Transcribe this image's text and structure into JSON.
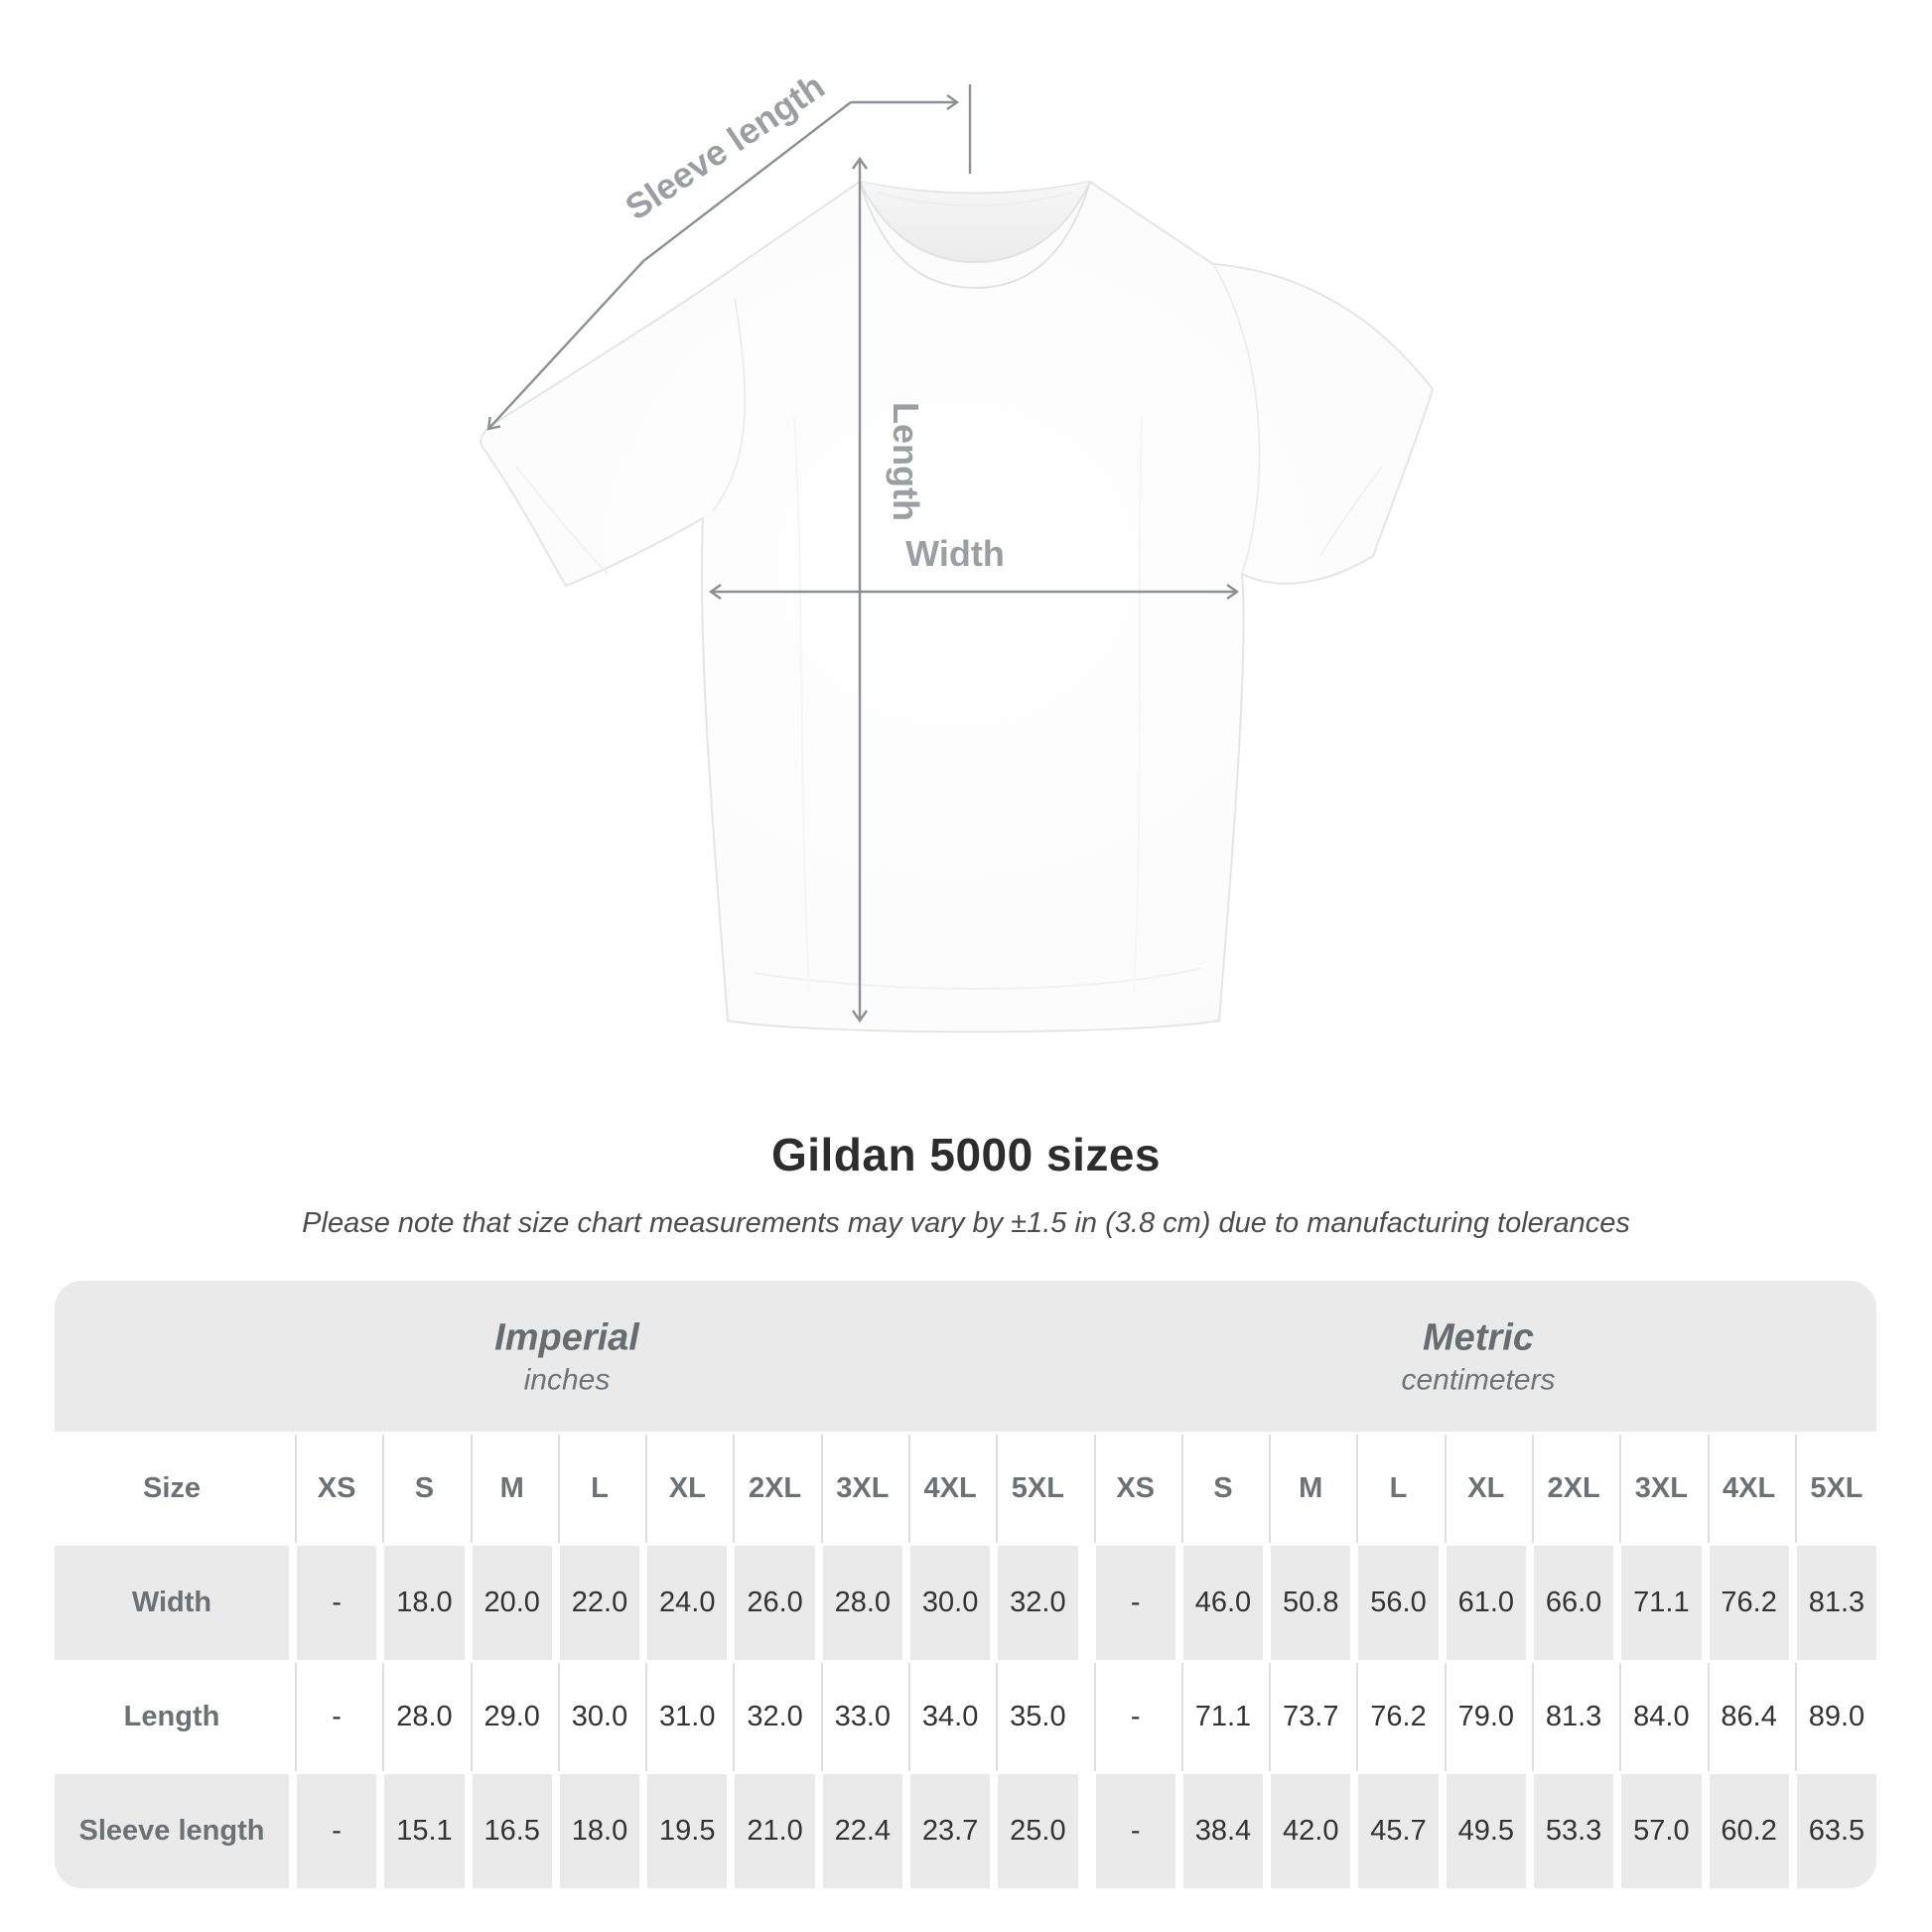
{
  "diagram": {
    "sleeve_length_label": "Sleeve length",
    "length_label": "Length",
    "width_label": "Width",
    "line_color": "#8b9094",
    "label_color": "#9b9fa3"
  },
  "title": "Gildan 5000 sizes",
  "subtitle": "Please note that size chart measurements may vary by ±1.5 in (3.8 cm) due to manufacturing tolerances",
  "table": {
    "size_header": "Size",
    "groups": [
      {
        "label": "Imperial",
        "sublabel": "inches"
      },
      {
        "label": "Metric",
        "sublabel": "centimeters"
      }
    ],
    "colors": {
      "band_bg": "#eaeaea",
      "stripe_bg": "#eaeaea",
      "header_text": "#6b7175",
      "value_text": "#333333"
    }
  },
  "chart_data": {
    "type": "table",
    "title": "Gildan 5000 sizes",
    "unit_groups": [
      {
        "name": "Imperial",
        "unit": "inches"
      },
      {
        "name": "Metric",
        "unit": "centimeters"
      }
    ],
    "sizes": [
      "XS",
      "S",
      "M",
      "L",
      "XL",
      "2XL",
      "3XL",
      "4XL",
      "5XL"
    ],
    "rows": [
      {
        "measurement": "Width",
        "imperial": [
          "-",
          "18.0",
          "20.0",
          "22.0",
          "24.0",
          "26.0",
          "28.0",
          "30.0",
          "32.0"
        ],
        "metric": [
          "-",
          "46.0",
          "50.8",
          "56.0",
          "61.0",
          "66.0",
          "71.1",
          "76.2",
          "81.3"
        ]
      },
      {
        "measurement": "Length",
        "imperial": [
          "-",
          "28.0",
          "29.0",
          "30.0",
          "31.0",
          "32.0",
          "33.0",
          "34.0",
          "35.0"
        ],
        "metric": [
          "-",
          "71.1",
          "73.7",
          "76.2",
          "79.0",
          "81.3",
          "84.0",
          "86.4",
          "89.0"
        ]
      },
      {
        "measurement": "Sleeve length",
        "imperial": [
          "-",
          "15.1",
          "16.5",
          "18.0",
          "19.5",
          "21.0",
          "22.4",
          "23.7",
          "25.0"
        ],
        "metric": [
          "-",
          "38.4",
          "42.0",
          "45.7",
          "49.5",
          "53.3",
          "57.0",
          "60.2",
          "63.5"
        ]
      }
    ]
  }
}
